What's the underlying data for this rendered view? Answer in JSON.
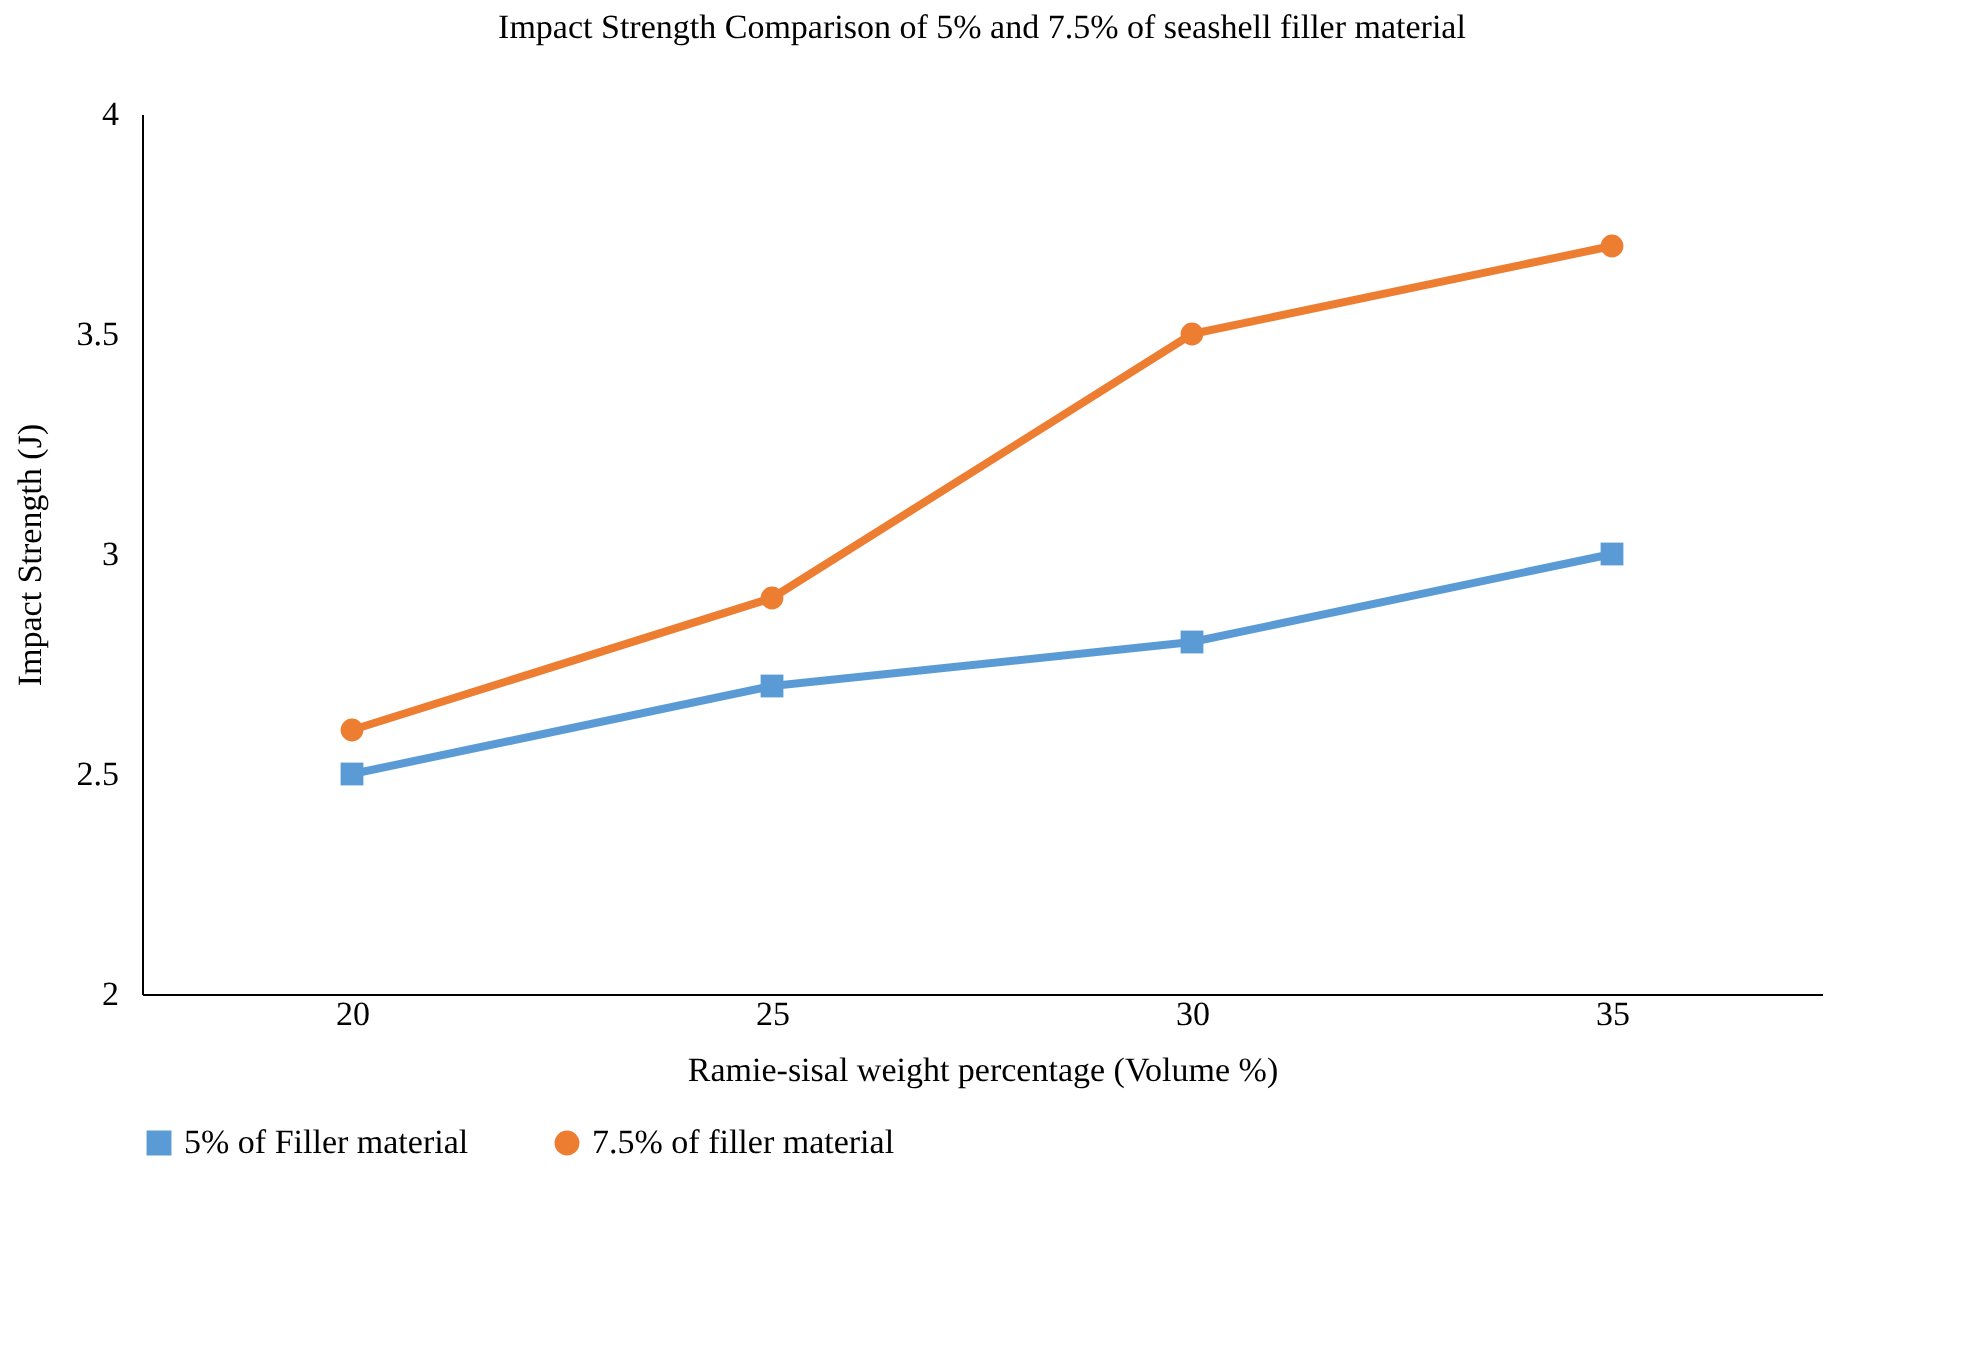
{
  "chart_data": {
    "type": "line",
    "title": "Impact Strength Comparison of 5% and 7.5% of seashell filler material",
    "xlabel": "Ramie-sisal weight percentage (Volume %)",
    "ylabel": "Impact Strength (J)",
    "categories": [
      "20",
      "25",
      "30",
      "35"
    ],
    "series": [
      {
        "name": "5% of Filler material",
        "color": "#5b9bd5",
        "marker": "square",
        "values": [
          2.5,
          2.7,
          2.8,
          3.0
        ]
      },
      {
        "name": "7.5% of filler material",
        "color": "#ed7d31",
        "marker": "circle",
        "values": [
          2.6,
          2.9,
          3.5,
          3.7
        ]
      }
    ],
    "ylim": [
      2,
      4
    ],
    "yticks": [
      2,
      2.5,
      3,
      3.5,
      4
    ],
    "grid": false,
    "legend": "bottom",
    "line_style": "solid"
  }
}
